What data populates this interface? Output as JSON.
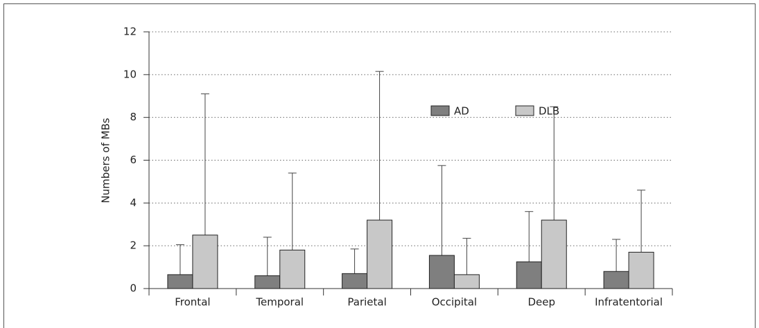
{
  "chart_data": {
    "type": "bar",
    "ylabel": "Numbers of MBs",
    "categories": [
      "Frontal",
      "Temporal",
      "Parietal",
      "Occipital",
      "Deep",
      "Infratentorial"
    ],
    "series": [
      {
        "name": "AD",
        "color": "#7f7f7f",
        "values": [
          0.65,
          0.6,
          0.7,
          1.55,
          1.25,
          0.8
        ],
        "errors": [
          1.4,
          1.8,
          1.15,
          4.2,
          2.35,
          1.5
        ]
      },
      {
        "name": "DLB",
        "color": "#c8c8c8",
        "values": [
          2.5,
          1.8,
          3.2,
          0.65,
          3.2,
          1.7
        ],
        "errors": [
          6.6,
          3.6,
          6.95,
          1.7,
          5.3,
          2.9
        ]
      }
    ],
    "ylim": [
      0,
      12
    ],
    "yticks": [
      0,
      2,
      4,
      6,
      8,
      10,
      12
    ],
    "grid": true,
    "legend": "top"
  }
}
